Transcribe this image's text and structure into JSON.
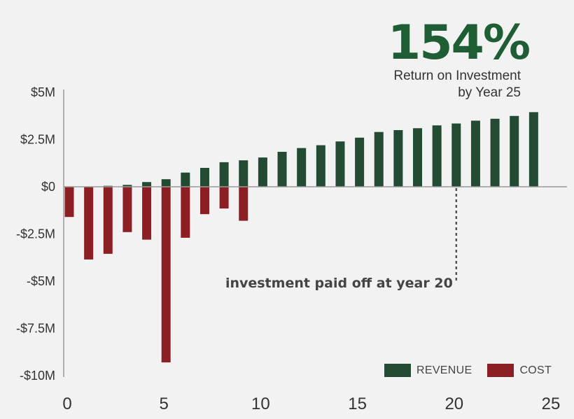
{
  "headline": {
    "value": "154%",
    "caption_line1": "Return on Investment",
    "caption_line2": "by Year 25"
  },
  "colors": {
    "revenue": "#234a33",
    "cost": "#8c1f24",
    "headline": "#1f5e35",
    "axis": "#9a9a9a",
    "text": "#333333"
  },
  "chart_data": {
    "type": "bar",
    "x": [
      0,
      1,
      2,
      3,
      4,
      5,
      6,
      7,
      8,
      9,
      10,
      11,
      12,
      13,
      14,
      15,
      16,
      17,
      18,
      19,
      20,
      21,
      22,
      23,
      24,
      25
    ],
    "series": [
      {
        "name": "REVENUE",
        "values": [
          0,
          0,
          0.05,
          0.1,
          0.25,
          0.4,
          0.75,
          1.0,
          1.3,
          1.4,
          1.55,
          1.85,
          2.05,
          2.2,
          2.4,
          2.6,
          2.9,
          3.0,
          3.1,
          3.25,
          3.35,
          3.5,
          3.6,
          3.75,
          3.95,
          0
        ]
      },
      {
        "name": "COST",
        "values": [
          -1.6,
          -3.85,
          -3.55,
          -2.4,
          -2.8,
          -9.3,
          -2.7,
          -1.45,
          -1.15,
          -1.8,
          0,
          0,
          0,
          0,
          0,
          0,
          0,
          0,
          0,
          0,
          0,
          0,
          0,
          0,
          0,
          0
        ]
      }
    ],
    "ylim": [
      -10,
      5
    ],
    "yticks": [
      5,
      2.5,
      0,
      -2.5,
      -5,
      -7.5,
      -10
    ],
    "ytick_labels": [
      "$5M",
      "$2.5M",
      "$0",
      "-$2.5M",
      "-$5M",
      "-$7.5M",
      "-$10M"
    ],
    "xlim": [
      0,
      25
    ],
    "xticks": [
      0,
      5,
      10,
      15,
      20,
      25
    ],
    "xtick_labels": [
      "0",
      "5",
      "10",
      "15",
      "20",
      "25"
    ],
    "annotation": {
      "text": "investment paid off at year 20",
      "x": 20
    },
    "legend": [
      "REVENUE",
      "COST"
    ],
    "legend_position": "bottom-right",
    "grid": false
  }
}
